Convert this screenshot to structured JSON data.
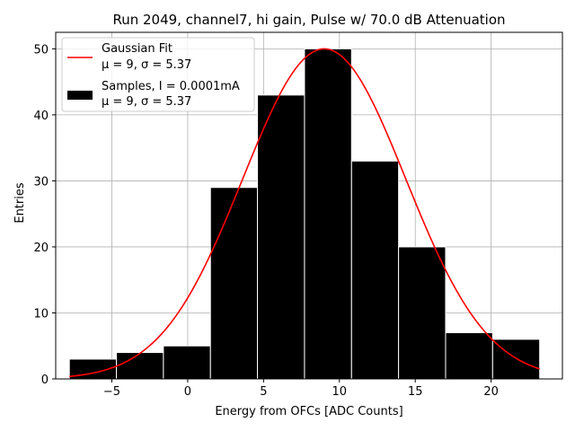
{
  "chart_data": {
    "type": "bar",
    "title": "Run 2049, channel7, hi gain, Pulse w/ 70.0 dB Attenuation",
    "xlabel": "Energy from OFCs [ADC Counts]",
    "ylabel": "Entries",
    "xlim": [
      -8.7,
      24.7
    ],
    "ylim": [
      0,
      52.5
    ],
    "xticks": [
      -5,
      0,
      5,
      10,
      15,
      20
    ],
    "yticks": [
      0,
      10,
      20,
      30,
      40,
      50
    ],
    "grid": true,
    "bins": [
      {
        "left": -7.8,
        "right": -4.7,
        "count": 3
      },
      {
        "left": -4.7,
        "right": -1.6,
        "count": 4
      },
      {
        "left": -1.6,
        "right": 1.5,
        "count": 5
      },
      {
        "left": 1.5,
        "right": 4.6,
        "count": 29
      },
      {
        "left": 4.6,
        "right": 7.7,
        "count": 43
      },
      {
        "left": 7.7,
        "right": 10.8,
        "count": 50
      },
      {
        "left": 10.8,
        "right": 13.9,
        "count": 33
      },
      {
        "left": 13.9,
        "right": 17.0,
        "count": 20
      },
      {
        "left": 17.0,
        "right": 20.1,
        "count": 7
      },
      {
        "left": 20.1,
        "right": 23.2,
        "count": 6
      }
    ],
    "fit": {
      "name": "Gaussian Fit",
      "color": "#ff0000",
      "mu": 9,
      "sigma": 5.37,
      "amplitude": 50,
      "x_range": [
        -7.8,
        23.2
      ]
    },
    "bar_color": "#000000",
    "bar_edge_color": "#ffffff",
    "legend": {
      "position": "upper-left",
      "entries": [
        {
          "kind": "line",
          "label": "Gaussian Fit",
          "sub": "μ = 9, σ = 5.37"
        },
        {
          "kind": "patch",
          "label": "Samples, I = 0.0001mA",
          "sub": "μ = 9, σ = 5.37"
        }
      ]
    }
  }
}
